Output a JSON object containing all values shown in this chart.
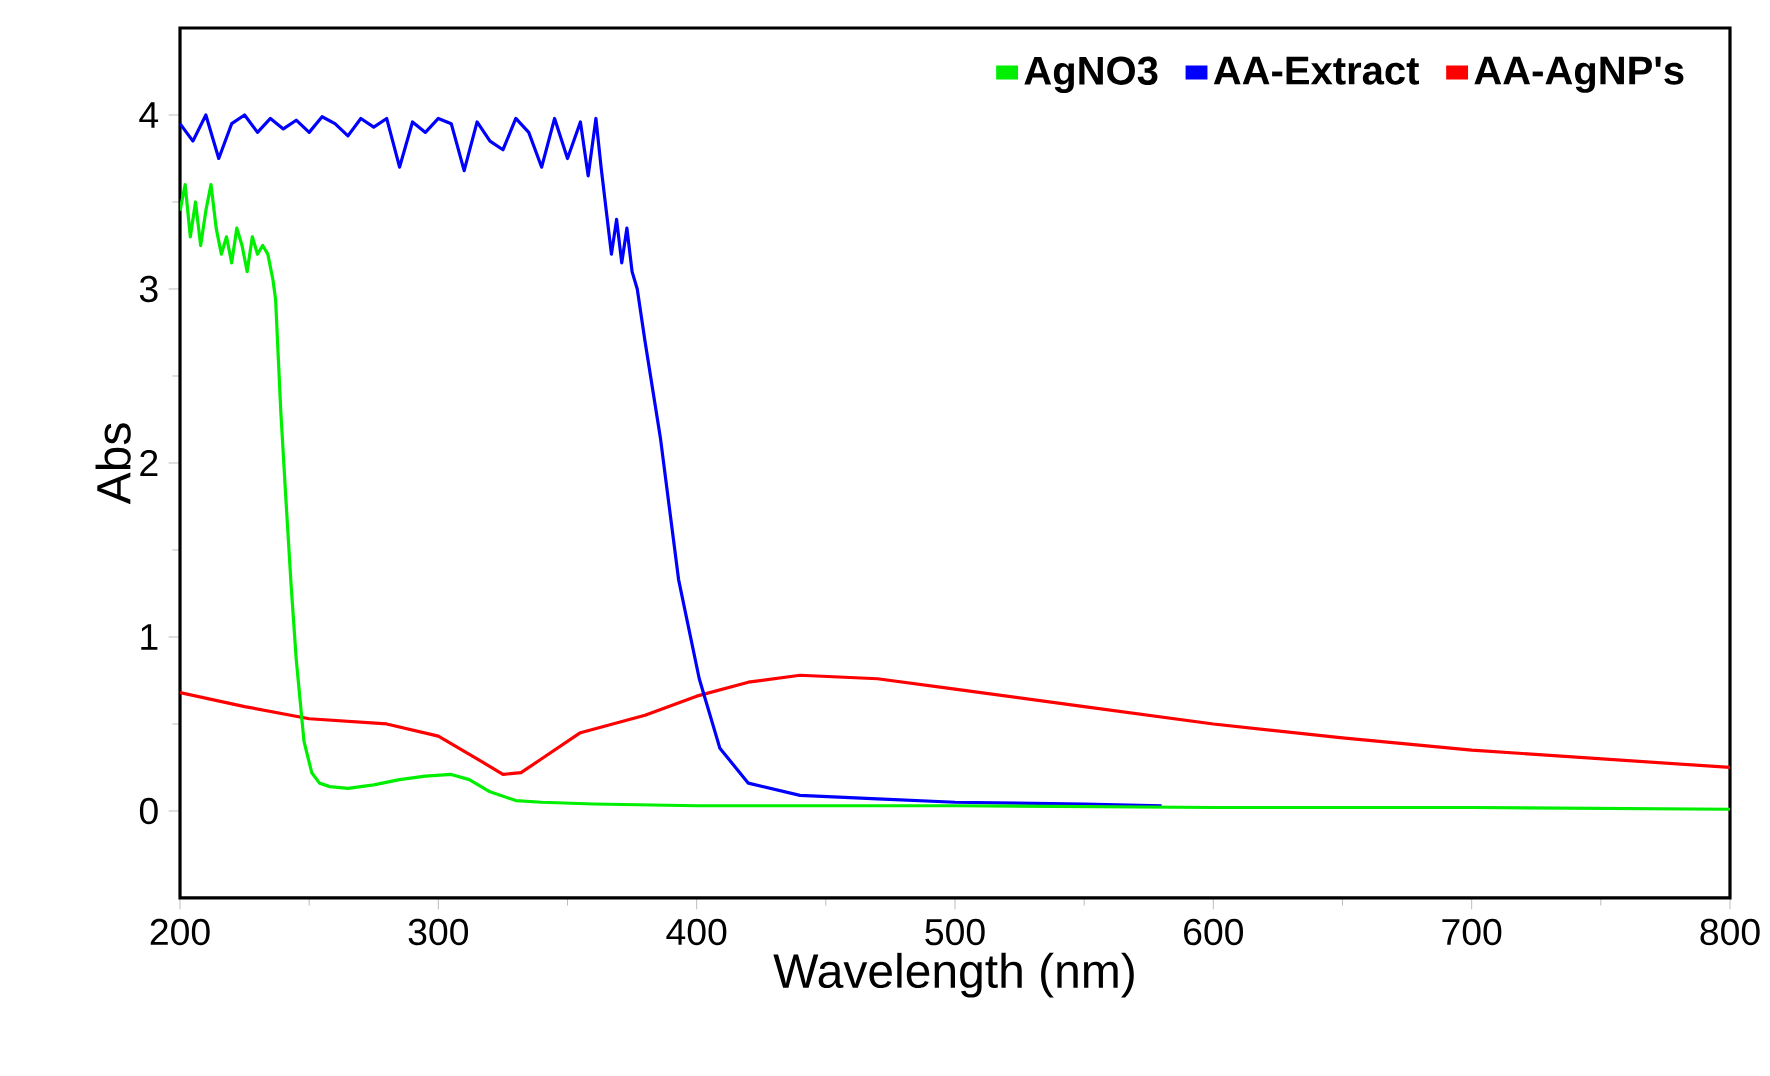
{
  "chart_data": {
    "type": "line",
    "xlabel": "Wavelength (nm)",
    "ylabel": "Abs",
    "xlim": [
      200,
      800
    ],
    "ylim": [
      -0.5,
      4.5
    ],
    "xticks": [
      200,
      300,
      400,
      500,
      600,
      700,
      800
    ],
    "yticks": [
      0,
      1,
      2,
      3,
      4
    ],
    "legend": "top right",
    "grid": false,
    "marker": "none",
    "line_style": "solid",
    "series": [
      {
        "name": "AgNO3",
        "color": "#00ee00",
        "x": [
          200,
          202,
          204,
          206,
          208,
          210,
          212,
          214,
          216,
          218,
          220,
          222,
          224,
          226,
          228,
          230,
          232,
          234,
          236,
          237,
          239,
          241,
          243,
          245,
          248,
          251,
          254,
          258,
          265,
          275,
          285,
          295,
          305,
          312,
          320,
          330,
          340,
          360,
          400,
          500,
          600,
          700,
          800
        ],
        "values": [
          3.45,
          3.6,
          3.3,
          3.5,
          3.25,
          3.45,
          3.6,
          3.35,
          3.2,
          3.3,
          3.15,
          3.35,
          3.25,
          3.1,
          3.3,
          3.2,
          3.25,
          3.2,
          3.05,
          2.94,
          2.3,
          1.79,
          1.3,
          0.87,
          0.4,
          0.22,
          0.16,
          0.14,
          0.13,
          0.15,
          0.18,
          0.2,
          0.21,
          0.18,
          0.11,
          0.06,
          0.05,
          0.04,
          0.03,
          0.03,
          0.02,
          0.02,
          0.01
        ]
      },
      {
        "name": "AA-Extract",
        "color": "#0000ff",
        "x": [
          200,
          205,
          210,
          215,
          220,
          225,
          230,
          235,
          240,
          245,
          250,
          255,
          260,
          265,
          270,
          275,
          280,
          285,
          290,
          295,
          300,
          305,
          310,
          315,
          320,
          325,
          330,
          335,
          340,
          345,
          350,
          355,
          358,
          361,
          363,
          365,
          367,
          369,
          371,
          373,
          375,
          377,
          380,
          386,
          393,
          401,
          409,
          420,
          440,
          470,
          500,
          550,
          580
        ],
        "values": [
          3.95,
          3.85,
          4.0,
          3.75,
          3.95,
          4.0,
          3.9,
          3.98,
          3.92,
          3.97,
          3.9,
          3.99,
          3.95,
          3.88,
          3.98,
          3.93,
          3.98,
          3.7,
          3.96,
          3.9,
          3.98,
          3.95,
          3.68,
          3.96,
          3.85,
          3.8,
          3.98,
          3.9,
          3.7,
          3.98,
          3.75,
          3.96,
          3.65,
          3.98,
          3.7,
          3.45,
          3.2,
          3.4,
          3.15,
          3.35,
          3.1,
          3.0,
          2.7,
          2.14,
          1.33,
          0.76,
          0.36,
          0.16,
          0.09,
          0.07,
          0.05,
          0.04,
          0.03
        ]
      },
      {
        "name": "AA-AgNP's",
        "color": "#ff0000",
        "x": [
          200,
          225,
          250,
          280,
          300,
          315,
          325,
          332,
          340,
          355,
          380,
          400,
          420,
          440,
          470,
          500,
          550,
          600,
          650,
          700,
          750,
          800
        ],
        "values": [
          0.68,
          0.6,
          0.53,
          0.5,
          0.43,
          0.3,
          0.21,
          0.22,
          0.3,
          0.45,
          0.55,
          0.66,
          0.74,
          0.78,
          0.76,
          0.7,
          0.6,
          0.5,
          0.42,
          0.35,
          0.3,
          0.25
        ]
      }
    ]
  }
}
